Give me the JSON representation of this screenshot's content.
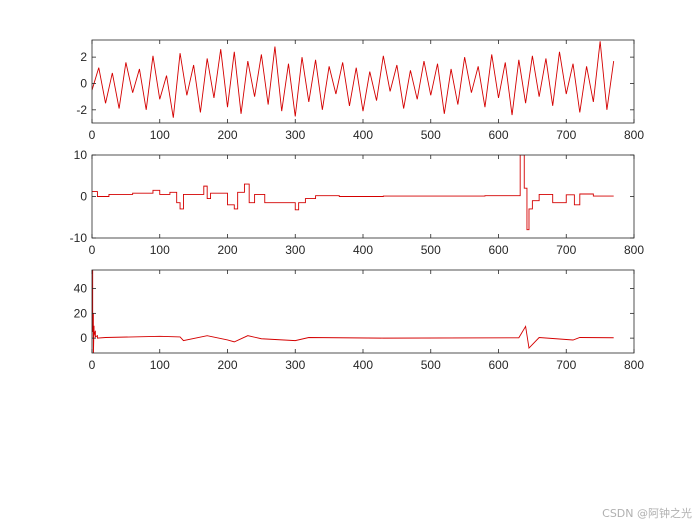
{
  "watermark": "CSDN @阿钟之光",
  "line_color": "#d40000",
  "chart_data": [
    {
      "type": "line",
      "xlim": [
        0,
        800
      ],
      "ylim": [
        -3,
        3.3
      ],
      "xticks": [
        0,
        100,
        200,
        300,
        400,
        500,
        600,
        700,
        800
      ],
      "yticks": [
        -2,
        0,
        2
      ],
      "grid": false,
      "series": [
        {
          "x": [
            0,
            10,
            20,
            30,
            40,
            50,
            60,
            70,
            80,
            90,
            100,
            110,
            120,
            130,
            140,
            150,
            160,
            170,
            180,
            190,
            200,
            210,
            220,
            230,
            240,
            250,
            260,
            270,
            280,
            290,
            300,
            310,
            320,
            330,
            340,
            350,
            360,
            370,
            380,
            390,
            400,
            410,
            420,
            430,
            440,
            450,
            460,
            470,
            480,
            490,
            500,
            510,
            520,
            530,
            540,
            550,
            560,
            570,
            580,
            590,
            600,
            610,
            620,
            630,
            640,
            650,
            660,
            670,
            680,
            690,
            700,
            710,
            720,
            730,
            740,
            750,
            760,
            770
          ],
          "y": [
            -0.5,
            1.2,
            -1.5,
            0.8,
            -1.9,
            1.6,
            -0.7,
            1.1,
            -2.0,
            2.1,
            -1.2,
            0.6,
            -2.6,
            2.3,
            -0.9,
            1.4,
            -2.2,
            1.9,
            -1.1,
            2.6,
            -1.8,
            2.4,
            -2.3,
            1.7,
            -1.0,
            2.2,
            -1.6,
            2.8,
            -2.1,
            1.5,
            -2.5,
            2.0,
            -1.4,
            1.8,
            -2.0,
            1.3,
            -0.8,
            1.6,
            -1.7,
            1.2,
            -2.1,
            0.9,
            -1.3,
            2.1,
            -0.6,
            1.4,
            -1.9,
            1.0,
            -1.2,
            1.7,
            -0.9,
            1.5,
            -2.3,
            1.1,
            -1.6,
            2.0,
            -0.7,
            1.3,
            -1.8,
            2.2,
            -1.1,
            1.6,
            -2.4,
            1.8,
            -1.5,
            2.1,
            -1.0,
            1.9,
            -1.7,
            2.4,
            -0.8,
            1.5,
            -2.2,
            1.3,
            -1.4,
            3.2,
            -2.0,
            1.7
          ]
        }
      ]
    },
    {
      "type": "line",
      "xlim": [
        0,
        800
      ],
      "ylim": [
        -10,
        10
      ],
      "xticks": [
        0,
        100,
        200,
        300,
        400,
        500,
        600,
        700,
        800
      ],
      "yticks": [
        -10,
        0,
        10
      ],
      "grid": false,
      "series": [
        {
          "x": [
            0,
            8,
            8,
            25,
            25,
            60,
            60,
            90,
            90,
            100,
            100,
            115,
            115,
            125,
            125,
            130,
            130,
            135,
            135,
            165,
            165,
            170,
            170,
            175,
            175,
            200,
            200,
            210,
            210,
            215,
            215,
            225,
            225,
            232,
            232,
            240,
            240,
            255,
            255,
            300,
            300,
            305,
            305,
            315,
            315,
            330,
            330,
            365,
            365,
            430,
            430,
            580,
            580,
            632,
            632,
            638,
            638,
            642,
            642,
            645,
            645,
            650,
            650,
            660,
            660,
            680,
            680,
            700,
            700,
            712,
            712,
            720,
            720,
            740,
            740,
            770
          ],
          "y": [
            1.2,
            1.2,
            0,
            0,
            0.5,
            0.5,
            0.8,
            0.8,
            1.5,
            1.5,
            0.5,
            0.5,
            1.0,
            1.0,
            -1.5,
            -1.5,
            -3.0,
            -3.0,
            0.5,
            0.5,
            2.5,
            2.5,
            -0.5,
            -0.5,
            0.8,
            0.8,
            -2.0,
            -2.0,
            -3.0,
            -3.0,
            1.0,
            1.0,
            3.0,
            3.0,
            -1.5,
            -1.5,
            0.5,
            0.5,
            -1.5,
            -1.5,
            -3.2,
            -3.2,
            -1.5,
            -1.5,
            -0.5,
            -0.5,
            0.2,
            0.2,
            0,
            0,
            0.1,
            0.1,
            0.2,
            0.2,
            10,
            10,
            2,
            2,
            -8,
            -8,
            -3,
            -3,
            -1,
            -1,
            0.5,
            0.5,
            -1.5,
            -1.5,
            0.4,
            0.4,
            -2.0,
            -2.0,
            0.6,
            0.6,
            0.1,
            0.1
          ]
        }
      ]
    },
    {
      "type": "line",
      "xlim": [
        0,
        800
      ],
      "ylim": [
        -12,
        55
      ],
      "xticks": [
        0,
        100,
        200,
        300,
        400,
        500,
        600,
        700,
        800
      ],
      "yticks": [
        0,
        20,
        40
      ],
      "grid": false,
      "series": [
        {
          "x": [
            0,
            1,
            1,
            2,
            2,
            3,
            3,
            5,
            5,
            8,
            8,
            20,
            20,
            60,
            60,
            100,
            100,
            130,
            130,
            135,
            135,
            170,
            170,
            200,
            200,
            210,
            210,
            230,
            230,
            250,
            250,
            300,
            300,
            320,
            320,
            430,
            430,
            630,
            630,
            640,
            640,
            645,
            645,
            660,
            660,
            710,
            710,
            720,
            720,
            770
          ],
          "y": [
            0,
            55,
            5,
            20,
            -15,
            10,
            2,
            6,
            1,
            2,
            0,
            0.5,
            0.5,
            1.0,
            1.0,
            1.5,
            1.5,
            1.0,
            1.0,
            -2.0,
            -2.0,
            2.0,
            2.0,
            -1.5,
            -1.5,
            -3.0,
            -3.0,
            2.0,
            2.0,
            -0.5,
            -0.5,
            -2.0,
            -2.0,
            0.5,
            0.5,
            0.0,
            0.0,
            0.3,
            0.3,
            9.5,
            9.5,
            -8.0,
            -8.0,
            0.5,
            0.5,
            -1.5,
            -1.5,
            0.5,
            0.5,
            0.3
          ]
        }
      ]
    }
  ]
}
